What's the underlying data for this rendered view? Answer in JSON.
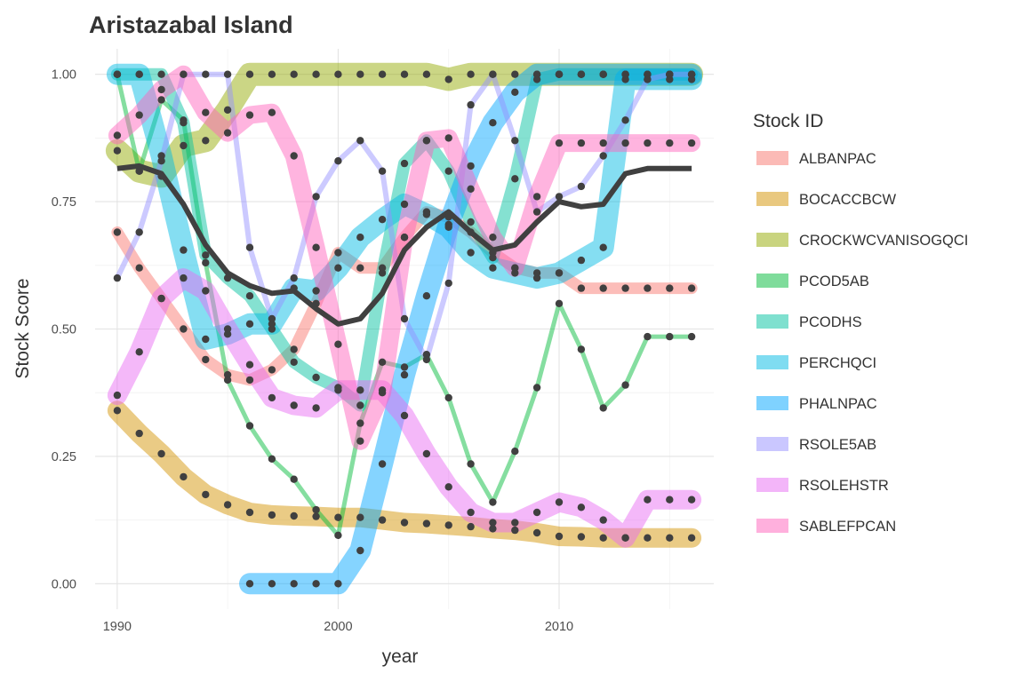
{
  "chart_data": {
    "type": "line",
    "title": "Aristazabal Island",
    "xlabel": "year",
    "ylabel": "Stock Score",
    "xlim": [
      1989,
      2017
    ],
    "ylim": [
      -0.05,
      1.05
    ],
    "x_ticks": [
      1990,
      2000,
      2010
    ],
    "y_ticks": [
      0.0,
      0.25,
      0.5,
      0.75,
      1.0
    ],
    "y_tick_labels": [
      "0.00",
      "0.25",
      "0.50",
      "0.75",
      "1.00"
    ],
    "grid": true,
    "legend_title": "Stock ID",
    "legend_position": "right",
    "series": [
      {
        "name": "ALBANPAC",
        "color": "#F8766D",
        "width": 13,
        "x": [
          1990,
          1991,
          1992,
          1993,
          1994,
          1995,
          1996,
          1997,
          1998,
          1999,
          2000,
          2001,
          2002,
          2003,
          2004,
          2005,
          2006,
          2007,
          2008,
          2009,
          2010,
          2011,
          2012,
          2013,
          2014,
          2015,
          2016
        ],
        "values": [
          0.69,
          0.62,
          0.56,
          0.5,
          0.44,
          0.41,
          0.4,
          0.42,
          0.46,
          0.55,
          0.65,
          0.62,
          0.62,
          0.68,
          0.73,
          0.72,
          0.69,
          0.65,
          0.62,
          0.61,
          0.61,
          0.58,
          0.58,
          0.58,
          0.58,
          0.58,
          0.58
        ]
      },
      {
        "name": "BOCACCBCW",
        "color": "#D39200",
        "width": 22,
        "x": [
          1990,
          1991,
          1992,
          1993,
          1994,
          1995,
          1996,
          1997,
          1998,
          1999,
          2000,
          2001,
          2002,
          2003,
          2004,
          2005,
          2006,
          2007,
          2008,
          2009,
          2010,
          2011,
          2012,
          2013,
          2014,
          2015,
          2016
        ],
        "values": [
          0.34,
          0.295,
          0.255,
          0.21,
          0.175,
          0.155,
          0.14,
          0.135,
          0.133,
          0.132,
          0.13,
          0.13,
          0.125,
          0.12,
          0.118,
          0.115,
          0.112,
          0.108,
          0.105,
          0.1,
          0.093,
          0.092,
          0.09,
          0.09,
          0.09,
          0.09,
          0.09
        ]
      },
      {
        "name": "CROCKWCVANISOGQCI",
        "color": "#93AA00",
        "width": 26,
        "x": [
          1990,
          1991,
          1992,
          1993,
          1994,
          1995,
          1996,
          1997,
          1998,
          1999,
          2000,
          2001,
          2002,
          2003,
          2004,
          2005,
          2006,
          2007,
          2008,
          2009,
          2010,
          2011,
          2012,
          2013,
          2014,
          2015,
          2016
        ],
        "values": [
          0.85,
          0.81,
          0.8,
          0.86,
          0.87,
          0.93,
          1.0,
          1.0,
          1.0,
          1.0,
          1.0,
          1.0,
          1.0,
          1.0,
          1.0,
          0.99,
          1.0,
          1.0,
          1.0,
          1.0,
          1.0,
          1.0,
          1.0,
          1.0,
          1.0,
          1.0,
          1.0
        ]
      },
      {
        "name": "PCOD5AB",
        "color": "#00BA38",
        "width": 5,
        "x": [
          1990,
          1991,
          1992,
          1993,
          1994,
          1995,
          1996,
          1997,
          1998,
          1999,
          2000,
          2001,
          2002,
          2003,
          2004,
          2005,
          2006,
          2007,
          2008,
          2009,
          2010,
          2011,
          2012,
          2013,
          2014,
          2015,
          2016
        ],
        "values": [
          1.0,
          0.81,
          0.95,
          0.91,
          0.63,
          0.4,
          0.31,
          0.245,
          0.205,
          0.145,
          0.095,
          0.315,
          0.435,
          0.425,
          0.45,
          0.365,
          0.235,
          0.16,
          0.26,
          0.385,
          0.55,
          0.46,
          0.345,
          0.39,
          0.485,
          0.485,
          0.485
        ]
      },
      {
        "name": "PCODHS",
        "color": "#00C19F",
        "width": 14,
        "x": [
          1990,
          1991,
          1992,
          1993,
          1994,
          1995,
          1996,
          1997,
          1998,
          1999,
          2000,
          2001,
          2002,
          2003,
          2004,
          2005,
          2006,
          2007,
          2008,
          2009,
          2010,
          2011,
          2012,
          2013,
          2014,
          2015,
          2016
        ],
        "values": [
          1.0,
          1.0,
          1.0,
          0.905,
          0.645,
          0.6,
          0.565,
          0.5,
          0.435,
          0.405,
          0.385,
          0.35,
          0.61,
          0.825,
          0.87,
          0.81,
          0.71,
          0.64,
          0.795,
          0.99,
          1.0,
          1.0,
          1.0,
          1.0,
          1.0,
          1.0,
          1.0
        ]
      },
      {
        "name": "PERCHQCI",
        "color": "#00B9E3",
        "width": 24,
        "x": [
          1990,
          1991,
          1992,
          1993,
          1994,
          1995,
          1996,
          1997,
          1998,
          1999,
          2000,
          2001,
          2002,
          2003,
          2004,
          2005,
          2006,
          2007,
          2008,
          2009,
          2010,
          2011,
          2012,
          2013,
          2014,
          2015,
          2016
        ],
        "values": [
          1.0,
          1.0,
          0.84,
          0.655,
          0.48,
          0.49,
          0.51,
          0.51,
          0.58,
          0.575,
          0.62,
          0.68,
          0.715,
          0.745,
          0.725,
          0.7,
          0.65,
          0.62,
          0.61,
          0.6,
          0.61,
          0.635,
          0.66,
          0.99,
          0.99,
          0.99,
          0.99
        ]
      },
      {
        "name": "PHALNPAC",
        "color": "#00A5FF",
        "width": 24,
        "x": [
          1996,
          1997,
          1998,
          1999,
          2000,
          2001,
          2002,
          2003,
          2004,
          2005,
          2006,
          2007,
          2008,
          2009,
          2010,
          2011,
          2012,
          2013,
          2014,
          2015,
          2016
        ],
        "values": [
          0.0,
          0.0,
          0.0,
          0.0,
          0.0,
          0.065,
          0.235,
          0.41,
          0.565,
          0.705,
          0.82,
          0.905,
          0.965,
          1.0,
          1.0,
          1.0,
          1.0,
          1.0,
          1.0,
          1.0,
          1.0
        ]
      },
      {
        "name": "RSOLE5AB",
        "color": "#9590FF",
        "width": 6,
        "x": [
          1990,
          1991,
          1992,
          1993,
          1994,
          1995,
          1996,
          1997,
          1998,
          1999,
          2000,
          2001,
          2002,
          2003,
          2004,
          2005,
          2006,
          2007,
          2008,
          2009,
          2010,
          2011,
          2012,
          2013,
          2014,
          2015,
          2016
        ],
        "values": [
          0.6,
          0.69,
          0.83,
          1.0,
          1.0,
          1.0,
          0.66,
          0.52,
          0.6,
          0.76,
          0.83,
          0.87,
          0.81,
          0.52,
          0.44,
          0.59,
          0.94,
          1.0,
          0.87,
          0.73,
          0.76,
          0.78,
          0.84,
          0.91,
          0.99,
          1.0,
          1.0
        ]
      },
      {
        "name": "RSOLEHSTR",
        "color": "#E76BF3",
        "width": 22,
        "x": [
          1990,
          1991,
          1992,
          1993,
          1994,
          1995,
          1996,
          1997,
          1998,
          1999,
          2000,
          2001,
          2002,
          2003,
          2004,
          2005,
          2006,
          2007,
          2008,
          2009,
          2010,
          2011,
          2012,
          2013,
          2014,
          2015,
          2016
        ],
        "values": [
          0.37,
          0.455,
          0.56,
          0.6,
          0.575,
          0.5,
          0.43,
          0.365,
          0.35,
          0.345,
          0.38,
          0.38,
          0.38,
          0.33,
          0.255,
          0.19,
          0.14,
          0.12,
          0.12,
          0.14,
          0.16,
          0.15,
          0.125,
          0.09,
          0.165,
          0.165,
          0.165
        ]
      },
      {
        "name": "SABLEFPCAN",
        "color": "#FF62BC",
        "width": 20,
        "x": [
          1990,
          1991,
          1992,
          1993,
          1994,
          1995,
          1996,
          1997,
          1998,
          1999,
          2000,
          2001,
          2002,
          2003,
          2004,
          2005,
          2006,
          2007,
          2008,
          2009,
          2010,
          2011,
          2012,
          2013,
          2014,
          2015,
          2016
        ],
        "values": [
          0.88,
          0.92,
          0.97,
          1.0,
          0.925,
          0.885,
          0.92,
          0.925,
          0.84,
          0.66,
          0.47,
          0.28,
          0.375,
          0.68,
          0.87,
          0.875,
          0.775,
          0.68,
          0.62,
          0.76,
          0.865,
          0.865,
          0.865,
          0.865,
          0.865,
          0.865,
          0.865
        ]
      }
    ],
    "mean_line": {
      "color": "#404040",
      "width": 6,
      "x": [
        1990,
        1991,
        1992,
        1993,
        1994,
        1995,
        1996,
        1997,
        1998,
        1999,
        2000,
        2001,
        2002,
        2003,
        2004,
        2005,
        2006,
        2007,
        2008,
        2009,
        2010,
        2011,
        2012,
        2013,
        2014,
        2015,
        2016
      ],
      "values": [
        0.815,
        0.82,
        0.805,
        0.745,
        0.665,
        0.61,
        0.585,
        0.57,
        0.575,
        0.54,
        0.51,
        0.52,
        0.57,
        0.655,
        0.7,
        0.73,
        0.69,
        0.655,
        0.665,
        0.71,
        0.75,
        0.74,
        0.745,
        0.805,
        0.815,
        0.815,
        0.815
      ]
    },
    "point_color": "#404040"
  }
}
